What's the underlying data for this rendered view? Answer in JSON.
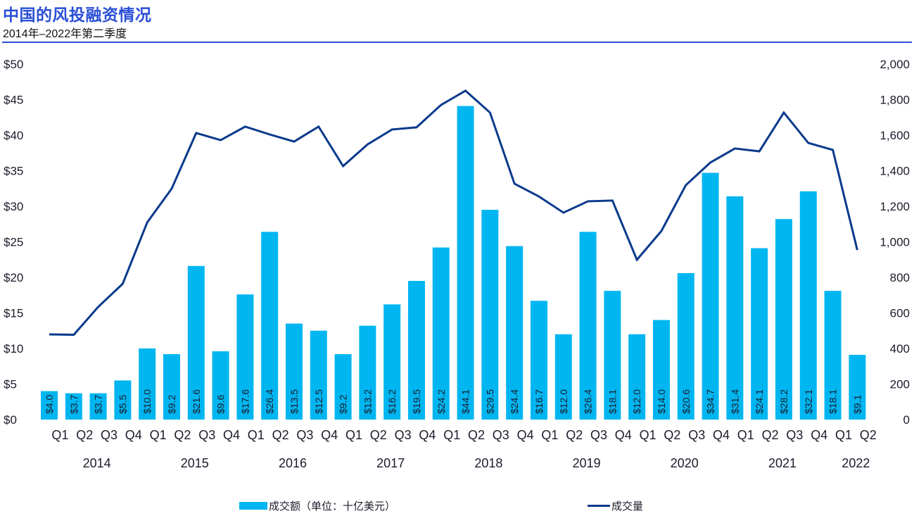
{
  "header": {
    "title": "中国的风投融资情况",
    "subtitle": "2014年–2022年第二季度"
  },
  "colors": {
    "title": "#2a4fd6",
    "bar": "#00b6f1",
    "line": "#0a3a8c"
  },
  "chart_data": {
    "type": "bar+line",
    "title": "中国的风投融资情况",
    "subtitle": "2014年–2022年第二季度",
    "categories": [
      "2014 Q1",
      "2014 Q2",
      "2014 Q3",
      "2014 Q4",
      "2015 Q1",
      "2015 Q2",
      "2015 Q3",
      "2015 Q4",
      "2016 Q1",
      "2016 Q2",
      "2016 Q3",
      "2016 Q4",
      "2017 Q1",
      "2017 Q2",
      "2017 Q3",
      "2017 Q4",
      "2018 Q1",
      "2018 Q2",
      "2018 Q3",
      "2018 Q4",
      "2019 Q1",
      "2019 Q2",
      "2019 Q3",
      "2019 Q4",
      "2020 Q1",
      "2020 Q2",
      "2020 Q3",
      "2020 Q4",
      "2021 Q1",
      "2021 Q2",
      "2021 Q3",
      "2021 Q4",
      "2022 Q1",
      "2022 Q2"
    ],
    "quarter_labels": [
      "Q1",
      "Q2",
      "Q3",
      "Q4",
      "Q1",
      "Q2",
      "Q3",
      "Q4",
      "Q1",
      "Q2",
      "Q3",
      "Q4",
      "Q1",
      "Q2",
      "Q3",
      "Q4",
      "Q1",
      "Q2",
      "Q3",
      "Q4",
      "Q1",
      "Q2",
      "Q3",
      "Q4",
      "Q1",
      "Q2",
      "Q3",
      "Q4",
      "Q1",
      "Q2",
      "Q3",
      "Q4",
      "Q1",
      "Q2"
    ],
    "year_labels": [
      "2014",
      "2015",
      "2016",
      "2017",
      "2018",
      "2019",
      "2020",
      "2021",
      "2022"
    ],
    "series": [
      {
        "name": "成交额（单位：十亿美元）",
        "type": "bar",
        "axis": "left",
        "values": [
          4.0,
          3.7,
          3.7,
          5.5,
          10.0,
          9.2,
          21.6,
          9.6,
          17.6,
          26.4,
          13.5,
          12.5,
          9.2,
          13.2,
          16.2,
          19.5,
          24.2,
          44.1,
          29.5,
          24.4,
          16.7,
          12.0,
          26.4,
          18.1,
          12.0,
          14.0,
          20.6,
          34.7,
          31.4,
          24.1,
          28.2,
          32.1,
          18.1,
          9.1
        ],
        "data_labels": [
          "$4.0",
          "$3.7",
          "$3.7",
          "$5.5",
          "$10.0",
          "$9.2",
          "$21.6",
          "$9.6",
          "$17.6",
          "$26.4",
          "$13.5",
          "$12.5",
          "$9.2",
          "$13.2",
          "$16.2",
          "$19.5",
          "$24.2",
          "$44.1",
          "$29.5",
          "$24.4",
          "$16.7",
          "$12.0",
          "$26.4",
          "$18.1",
          "$12.0",
          "$14.0",
          "$20.6",
          "$34.7",
          "$31.4",
          "$24.1",
          "$28.2",
          "$32.1",
          "$18.1",
          "$9.1"
        ]
      },
      {
        "name": "成交量",
        "type": "line",
        "axis": "right",
        "values": [
          479,
          477,
          634,
          764,
          1109,
          1299,
          1612,
          1572,
          1648,
          1604,
          1564,
          1648,
          1426,
          1548,
          1632,
          1644,
          1770,
          1850,
          1727,
          1327,
          1255,
          1164,
          1228,
          1232,
          899,
          1061,
          1319,
          1446,
          1525,
          1509,
          1727,
          1556,
          1517,
          954
        ]
      }
    ],
    "y_left": {
      "min": 0,
      "max": 50,
      "step": 5,
      "tick_labels": [
        "$0",
        "$5",
        "$10",
        "$15",
        "$20",
        "$25",
        "$30",
        "$35",
        "$40",
        "$45",
        "$50"
      ]
    },
    "y_right": {
      "min": 0,
      "max": 2000,
      "step": 200,
      "tick_labels": [
        "0",
        "200",
        "400",
        "600",
        "800",
        "1,000",
        "1,200",
        "1,400",
        "1,600",
        "1,800",
        "2,000"
      ]
    },
    "grid": false,
    "legend_position": "bottom"
  },
  "legend": {
    "bar_label": "成交额（单位：十亿美元）",
    "line_label": "成交量"
  }
}
